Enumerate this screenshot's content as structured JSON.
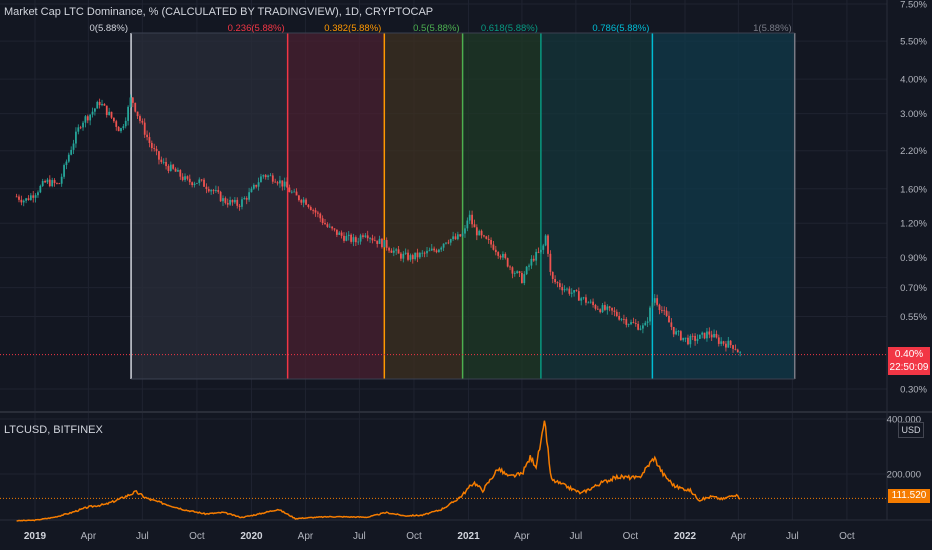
{
  "header": {
    "title": "Market Cap LTC Dominance, % (CALCULATED BY TRADINGVIEW), 1D, CRYPTOCAP",
    "subtitle": "LTCUSD, BITFINEX"
  },
  "colors": {
    "background": "#131722",
    "grid": "#1f2330",
    "axis_text": "#b2b5be",
    "candle_up": "#26a69a",
    "candle_down": "#ef5350",
    "sub_line": "#f57c00",
    "current_price": "#f23645"
  },
  "chart_data": [
    {
      "type": "candlestick",
      "title": "Market Cap LTC Dominance, % (CALCULATED BY TRADINGVIEW), 1D, CRYPTOCAP",
      "scale": "log",
      "y_ticks": [
        "7.50%",
        "5.50%",
        "4.00%",
        "3.00%",
        "2.20%",
        "1.60%",
        "1.20%",
        "0.90%",
        "0.70%",
        "0.55%",
        "0.30%"
      ],
      "y_tick_values": [
        7.5,
        5.5,
        4.0,
        3.0,
        2.2,
        1.6,
        1.2,
        0.9,
        0.7,
        0.55,
        0.3
      ],
      "x_ticks": [
        "2019",
        "Apr",
        "Jul",
        "Oct",
        "2020",
        "Apr",
        "Jul",
        "Oct",
        "2021",
        "Apr",
        "Jul",
        "Oct",
        "2022",
        "Apr",
        "Jul",
        "Oct"
      ],
      "x_tick_dates": [
        "2019-01-01",
        "2019-04-01",
        "2019-07-01",
        "2019-10-01",
        "2020-01-01",
        "2020-04-01",
        "2020-07-01",
        "2020-10-01",
        "2021-01-01",
        "2021-04-01",
        "2021-07-01",
        "2021-10-01",
        "2022-01-01",
        "2022-04-01",
        "2022-07-01",
        "2022-10-01"
      ],
      "series_points": [
        [
          "2018-12-01",
          1.5
        ],
        [
          "2018-12-15",
          1.45
        ],
        [
          "2019-01-01",
          1.55
        ],
        [
          "2019-01-20",
          1.7
        ],
        [
          "2019-02-10",
          1.65
        ],
        [
          "2019-03-01",
          2.2
        ],
        [
          "2019-03-20",
          2.8
        ],
        [
          "2019-04-05",
          3.0
        ],
        [
          "2019-04-20",
          3.3
        ],
        [
          "2019-05-10",
          2.9
        ],
        [
          "2019-05-25",
          2.6
        ],
        [
          "2019-06-05",
          3.0
        ],
        [
          "2019-06-12",
          3.45
        ],
        [
          "2019-06-25",
          2.9
        ],
        [
          "2019-07-15",
          2.3
        ],
        [
          "2019-08-01",
          2.0
        ],
        [
          "2019-08-25",
          1.85
        ],
        [
          "2019-09-15",
          1.7
        ],
        [
          "2019-10-05",
          1.7
        ],
        [
          "2019-10-25",
          1.6
        ],
        [
          "2019-11-15",
          1.45
        ],
        [
          "2019-12-10",
          1.4
        ],
        [
          "2019-12-31",
          1.55
        ],
        [
          "2020-01-20",
          1.8
        ],
        [
          "2020-02-10",
          1.75
        ],
        [
          "2020-02-25",
          1.65
        ],
        [
          "2020-03-15",
          1.5
        ],
        [
          "2020-04-01",
          1.45
        ],
        [
          "2020-04-20",
          1.3
        ],
        [
          "2020-05-10",
          1.15
        ],
        [
          "2020-06-01",
          1.08
        ],
        [
          "2020-06-25",
          1.03
        ],
        [
          "2020-07-10",
          1.12
        ],
        [
          "2020-07-25",
          1.05
        ],
        [
          "2020-08-15",
          1.0
        ],
        [
          "2020-09-05",
          0.92
        ],
        [
          "2020-09-25",
          0.9
        ],
        [
          "2020-10-20",
          0.93
        ],
        [
          "2020-11-10",
          0.97
        ],
        [
          "2020-11-25",
          1.05
        ],
        [
          "2020-12-10",
          1.05
        ],
        [
          "2020-12-25",
          1.1
        ],
        [
          "2021-01-01",
          1.3
        ],
        [
          "2021-01-10",
          1.15
        ],
        [
          "2021-01-25",
          1.05
        ],
        [
          "2021-02-10",
          1.0
        ],
        [
          "2021-02-25",
          0.92
        ],
        [
          "2021-03-15",
          0.82
        ],
        [
          "2021-04-01",
          0.75
        ],
        [
          "2021-04-20",
          0.9
        ],
        [
          "2021-05-05",
          0.95
        ],
        [
          "2021-05-12",
          1.1
        ],
        [
          "2021-05-20",
          0.75
        ],
        [
          "2021-06-10",
          0.7
        ],
        [
          "2021-07-01",
          0.66
        ],
        [
          "2021-08-01",
          0.6
        ],
        [
          "2021-09-01",
          0.57
        ],
        [
          "2021-10-01",
          0.52
        ],
        [
          "2021-10-25",
          0.5
        ],
        [
          "2021-11-10",
          0.65
        ],
        [
          "2021-11-25",
          0.57
        ],
        [
          "2021-12-15",
          0.48
        ],
        [
          "2022-01-05",
          0.45
        ],
        [
          "2022-01-25",
          0.46
        ],
        [
          "2022-02-10",
          0.48
        ],
        [
          "2022-02-25",
          0.45
        ],
        [
          "2022-03-10",
          0.44
        ],
        [
          "2022-03-25",
          0.43
        ],
        [
          "2022-04-05",
          0.4
        ]
      ],
      "current_value": "0.40%",
      "countdown": "22:50:09",
      "fib_time_zones": {
        "start": "2019-06-12",
        "end": "2022-07-05",
        "levels": [
          {
            "ratio": 0,
            "label": "0(5.88%)",
            "color": "#d1d4dc",
            "fill": "#2a2e39"
          },
          {
            "ratio": 0.236,
            "label": "0.236(5.88%)",
            "color": "#f23645",
            "fill": "#4a2030"
          },
          {
            "ratio": 0.382,
            "label": "0.382(5.88%)",
            "color": "#ff9800",
            "fill": "#3d3020"
          },
          {
            "ratio": 0.5,
            "label": "0.5(5.88%)",
            "color": "#4caf50",
            "fill": "#1f3a25"
          },
          {
            "ratio": 0.618,
            "label": "0.618(5.88%)",
            "color": "#089981",
            "fill": "#14363a"
          },
          {
            "ratio": 0.786,
            "label": "0.786(5.88%)",
            "color": "#00bcd4",
            "fill": "#103a4a"
          },
          {
            "ratio": 1,
            "label": "1(5.88%)",
            "color": "#787b86",
            "fill": "none"
          }
        ]
      }
    },
    {
      "type": "line",
      "title": "LTCUSD, BITFINEX",
      "y_ticks": [
        "400.000",
        "200.000"
      ],
      "y_tick_values": [
        400,
        200
      ],
      "unit": "USD",
      "series_points": [
        [
          "2018-12-01",
          30
        ],
        [
          "2019-01-01",
          32
        ],
        [
          "2019-02-01",
          42
        ],
        [
          "2019-03-01",
          58
        ],
        [
          "2019-04-01",
          80
        ],
        [
          "2019-05-01",
          90
        ],
        [
          "2019-05-25",
          110
        ],
        [
          "2019-06-20",
          135
        ],
        [
          "2019-07-10",
          110
        ],
        [
          "2019-08-10",
          90
        ],
        [
          "2019-09-10",
          70
        ],
        [
          "2019-10-15",
          55
        ],
        [
          "2019-11-15",
          60
        ],
        [
          "2019-12-15",
          42
        ],
        [
          "2020-01-15",
          55
        ],
        [
          "2020-02-15",
          72
        ],
        [
          "2020-03-15",
          38
        ],
        [
          "2020-04-15",
          42
        ],
        [
          "2020-05-15",
          45
        ],
        [
          "2020-06-15",
          44
        ],
        [
          "2020-07-15",
          43
        ],
        [
          "2020-08-15",
          60
        ],
        [
          "2020-09-15",
          48
        ],
        [
          "2020-10-15",
          50
        ],
        [
          "2020-11-15",
          70
        ],
        [
          "2020-12-01",
          90
        ],
        [
          "2020-12-20",
          120
        ],
        [
          "2021-01-10",
          170
        ],
        [
          "2021-01-25",
          140
        ],
        [
          "2021-02-20",
          220
        ],
        [
          "2021-03-10",
          190
        ],
        [
          "2021-04-01",
          200
        ],
        [
          "2021-04-15",
          260
        ],
        [
          "2021-04-25",
          230
        ],
        [
          "2021-05-10",
          390
        ],
        [
          "2021-05-20",
          180
        ],
        [
          "2021-06-10",
          160
        ],
        [
          "2021-07-10",
          130
        ],
        [
          "2021-08-15",
          170
        ],
        [
          "2021-09-10",
          190
        ],
        [
          "2021-10-15",
          185
        ],
        [
          "2021-11-10",
          260
        ],
        [
          "2021-11-25",
          200
        ],
        [
          "2021-12-15",
          155
        ],
        [
          "2022-01-10",
          140
        ],
        [
          "2022-01-25",
          105
        ],
        [
          "2022-02-15",
          118
        ],
        [
          "2022-03-05",
          108
        ],
        [
          "2022-03-25",
          125
        ],
        [
          "2022-04-05",
          111.52
        ]
      ],
      "current_value": "111.520"
    }
  ]
}
